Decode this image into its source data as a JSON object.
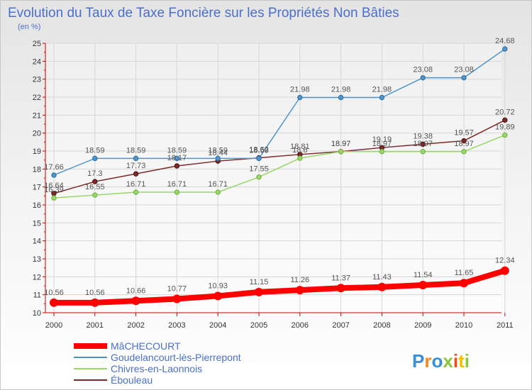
{
  "chart_data": {
    "type": "line",
    "title": "Evolution du Taux de Taxe Foncière sur les Propriétés Non Bâties",
    "subtitle": "(en %)",
    "xlabel": "",
    "ylabel": "",
    "x": [
      "2000",
      "2001",
      "2002",
      "2003",
      "2004",
      "2005",
      "2006",
      "2007",
      "2008",
      "2009",
      "2010",
      "2011"
    ],
    "yticks": [
      "10",
      "11",
      "12",
      "13",
      "14",
      "15",
      "16",
      "17",
      "18",
      "19",
      "20",
      "21",
      "22",
      "23",
      "24",
      "25"
    ],
    "ylim": [
      10,
      25
    ],
    "grid": true,
    "legend_position": "bottom-left",
    "series": [
      {
        "name": "MâCHECOURT",
        "color": "#ff0000",
        "values": [
          10.56,
          10.56,
          10.66,
          10.77,
          10.93,
          11.15,
          11.26,
          11.37,
          11.43,
          11.54,
          11.65,
          12.34
        ],
        "labels": [
          "10.56",
          "10.56",
          "10.66",
          "10.77",
          "10.93",
          "11.15",
          "11.26",
          "11.37",
          "11.43",
          "11.54",
          "11.65",
          "12.34"
        ]
      },
      {
        "name": "Goudelancourt-lès-Pierrepont",
        "color": "#4f95cc",
        "values": [
          17.66,
          18.59,
          18.59,
          18.59,
          18.59,
          18.59,
          21.98,
          21.98,
          21.98,
          23.08,
          23.08,
          24.68
        ],
        "labels": [
          "17.66",
          "18.59",
          "18.59",
          "18.59",
          "18.59",
          "18.59",
          "21.98",
          "21.98",
          "21.98",
          "23.08",
          "23.08",
          "24.68"
        ]
      },
      {
        "name": "Chivres-en-Laonnois",
        "color": "#9ad66a",
        "values": [
          16.39,
          16.55,
          16.71,
          16.71,
          16.71,
          17.55,
          18.6,
          18.97,
          18.97,
          18.97,
          18.97,
          19.89
        ],
        "labels": [
          "16.39",
          "16.55",
          "16.71",
          "16.71",
          "16.71",
          "17.55",
          "18.6",
          "18.97",
          "18.97",
          "18.97",
          "18.97",
          "19.89"
        ]
      },
      {
        "name": "Ébouleau",
        "color": "#7a2a2a",
        "values": [
          16.64,
          17.3,
          17.73,
          18.17,
          18.44,
          18.62,
          18.81,
          18.97,
          19.19,
          19.38,
          19.57,
          20.72
        ],
        "labels": [
          "16.64",
          "17.3",
          "17.73",
          "18.17",
          "18.44",
          "18.62",
          "18.81",
          "18.97",
          "19.19",
          "19.38",
          "19.57",
          "20.72"
        ]
      }
    ],
    "logo": {
      "text": "Proxiti",
      "letter_colors": [
        "#3b8fd9",
        "#f08a24",
        "#3b8fd9",
        "#8cc63f",
        "#e94e1b",
        "#f2c100",
        "#8cc63f"
      ]
    }
  }
}
